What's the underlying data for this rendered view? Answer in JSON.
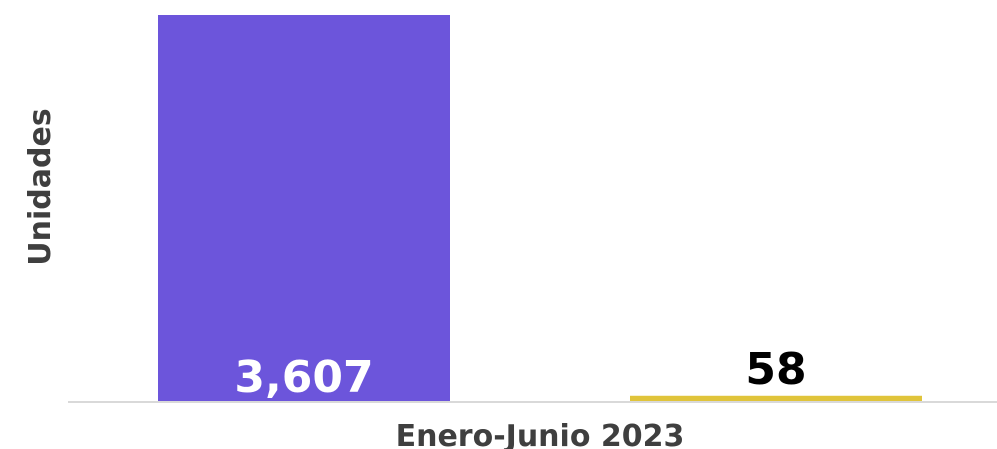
{
  "chart_data": {
    "type": "bar",
    "categories": [
      "Enero-Junio 2023"
    ],
    "series": [
      {
        "values": [
          3607
        ],
        "color": "#6c55db",
        "label": "3,607",
        "label_color": "#ffffff",
        "label_position": "inside-bottom"
      },
      {
        "values": [
          58
        ],
        "color": "#e0c43a",
        "label": "58",
        "label_color": "#000000",
        "label_position": "above"
      }
    ],
    "ylabel": "Unidades",
    "xlabel": "",
    "ylim": [
      0,
      3607
    ],
    "grid": false,
    "legend": "none",
    "axis_color": "#d9d9d9"
  }
}
